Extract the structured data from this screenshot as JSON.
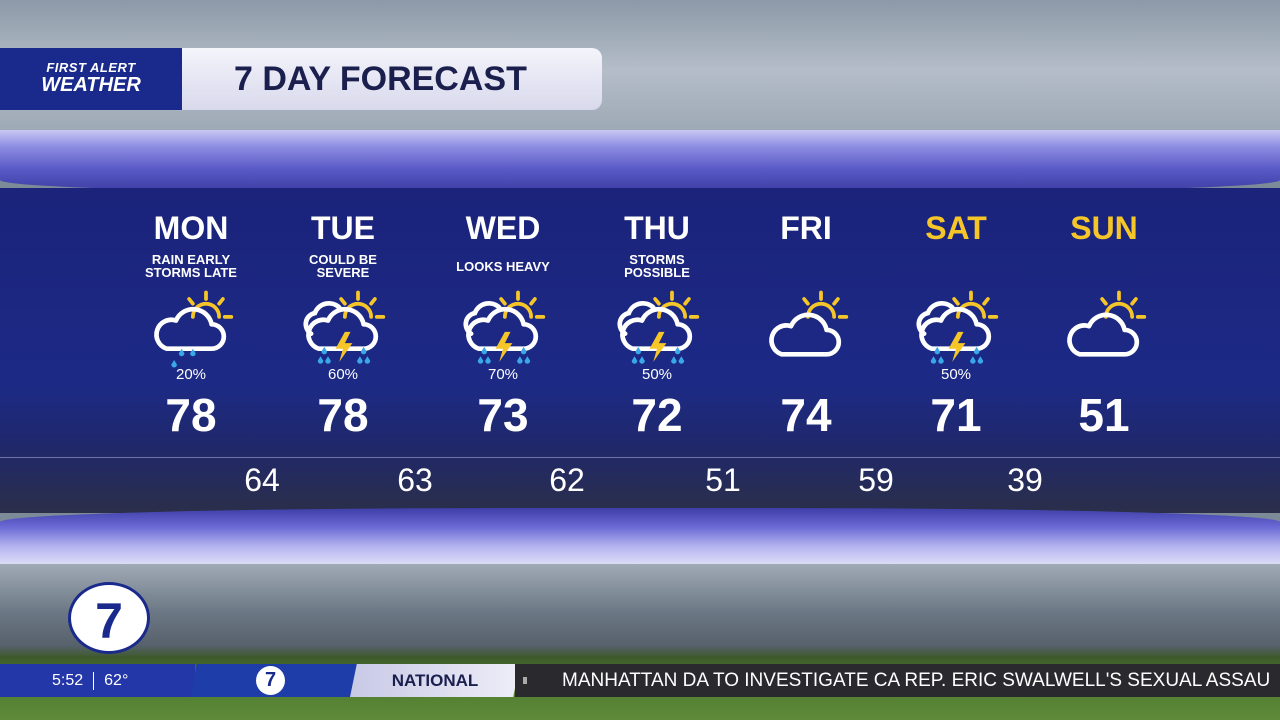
{
  "header": {
    "brand_line1": "FIRST ALERT",
    "brand_line2": "WEATHER",
    "title": "7 DAY FORECAST"
  },
  "colors": {
    "weekday": "#ffffff",
    "weekend": "#f6c629",
    "panel": "#1c2a86",
    "sun": "#f6c629",
    "rain": "#3aa8e8"
  },
  "days": [
    {
      "day": "MON",
      "desc": "RAIN EARLY\nSTORMS LATE",
      "icon": "rain-partly-sunny",
      "precip": "20%",
      "high": "78",
      "weekend": false
    },
    {
      "day": "TUE",
      "desc": "COULD BE\nSEVERE",
      "icon": "thunderstorm-partly-sunny",
      "precip": "60%",
      "high": "78",
      "weekend": false
    },
    {
      "day": "WED",
      "desc": "LOOKS HEAVY",
      "icon": "thunderstorm-partly-sunny",
      "precip": "70%",
      "high": "73",
      "weekend": false
    },
    {
      "day": "THU",
      "desc": "STORMS\nPOSSIBLE",
      "icon": "thunderstorm-partly-sunny",
      "precip": "50%",
      "high": "72",
      "weekend": false
    },
    {
      "day": "FRI",
      "desc": "",
      "icon": "partly-cloudy",
      "precip": "",
      "high": "74",
      "weekend": false
    },
    {
      "day": "SAT",
      "desc": "",
      "icon": "thunderstorm-partly-sunny",
      "precip": "50%",
      "high": "71",
      "weekend": true
    },
    {
      "day": "SUN",
      "desc": "",
      "icon": "partly-cloudy",
      "precip": "",
      "high": "51",
      "weekend": true
    }
  ],
  "lows": [
    "64",
    "63",
    "62",
    "51",
    "59",
    "39"
  ],
  "station_logo": "7abc",
  "ticker": {
    "time": "5:52",
    "temp": "62°",
    "category": "NATIONAL",
    "headline": "MANHATTAN DA TO INVESTIGATE CA REP. ERIC SWALWELL'S SEXUAL ASSAU"
  }
}
